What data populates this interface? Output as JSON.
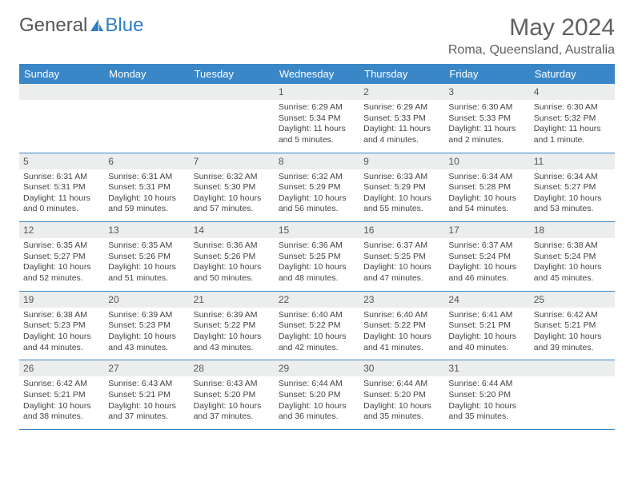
{
  "logo": {
    "text1": "General",
    "text2": "Blue"
  },
  "title": "May 2024",
  "location": "Roma, Queensland, Australia",
  "dayHeaders": [
    "Sunday",
    "Monday",
    "Tuesday",
    "Wednesday",
    "Thursday",
    "Friday",
    "Saturday"
  ],
  "colors": {
    "headerBg": "#3a87c8",
    "headerText": "#ffffff",
    "dayNumBg": "#eceded",
    "rule": "#3a87c8"
  },
  "weeks": [
    [
      {
        "n": "",
        "sr": "",
        "ss": "",
        "dl": ""
      },
      {
        "n": "",
        "sr": "",
        "ss": "",
        "dl": ""
      },
      {
        "n": "",
        "sr": "",
        "ss": "",
        "dl": ""
      },
      {
        "n": "1",
        "sr": "Sunrise: 6:29 AM",
        "ss": "Sunset: 5:34 PM",
        "dl": "Daylight: 11 hours and 5 minutes."
      },
      {
        "n": "2",
        "sr": "Sunrise: 6:29 AM",
        "ss": "Sunset: 5:33 PM",
        "dl": "Daylight: 11 hours and 4 minutes."
      },
      {
        "n": "3",
        "sr": "Sunrise: 6:30 AM",
        "ss": "Sunset: 5:33 PM",
        "dl": "Daylight: 11 hours and 2 minutes."
      },
      {
        "n": "4",
        "sr": "Sunrise: 6:30 AM",
        "ss": "Sunset: 5:32 PM",
        "dl": "Daylight: 11 hours and 1 minute."
      }
    ],
    [
      {
        "n": "5",
        "sr": "Sunrise: 6:31 AM",
        "ss": "Sunset: 5:31 PM",
        "dl": "Daylight: 11 hours and 0 minutes."
      },
      {
        "n": "6",
        "sr": "Sunrise: 6:31 AM",
        "ss": "Sunset: 5:31 PM",
        "dl": "Daylight: 10 hours and 59 minutes."
      },
      {
        "n": "7",
        "sr": "Sunrise: 6:32 AM",
        "ss": "Sunset: 5:30 PM",
        "dl": "Daylight: 10 hours and 57 minutes."
      },
      {
        "n": "8",
        "sr": "Sunrise: 6:32 AM",
        "ss": "Sunset: 5:29 PM",
        "dl": "Daylight: 10 hours and 56 minutes."
      },
      {
        "n": "9",
        "sr": "Sunrise: 6:33 AM",
        "ss": "Sunset: 5:29 PM",
        "dl": "Daylight: 10 hours and 55 minutes."
      },
      {
        "n": "10",
        "sr": "Sunrise: 6:34 AM",
        "ss": "Sunset: 5:28 PM",
        "dl": "Daylight: 10 hours and 54 minutes."
      },
      {
        "n": "11",
        "sr": "Sunrise: 6:34 AM",
        "ss": "Sunset: 5:27 PM",
        "dl": "Daylight: 10 hours and 53 minutes."
      }
    ],
    [
      {
        "n": "12",
        "sr": "Sunrise: 6:35 AM",
        "ss": "Sunset: 5:27 PM",
        "dl": "Daylight: 10 hours and 52 minutes."
      },
      {
        "n": "13",
        "sr": "Sunrise: 6:35 AM",
        "ss": "Sunset: 5:26 PM",
        "dl": "Daylight: 10 hours and 51 minutes."
      },
      {
        "n": "14",
        "sr": "Sunrise: 6:36 AM",
        "ss": "Sunset: 5:26 PM",
        "dl": "Daylight: 10 hours and 50 minutes."
      },
      {
        "n": "15",
        "sr": "Sunrise: 6:36 AM",
        "ss": "Sunset: 5:25 PM",
        "dl": "Daylight: 10 hours and 48 minutes."
      },
      {
        "n": "16",
        "sr": "Sunrise: 6:37 AM",
        "ss": "Sunset: 5:25 PM",
        "dl": "Daylight: 10 hours and 47 minutes."
      },
      {
        "n": "17",
        "sr": "Sunrise: 6:37 AM",
        "ss": "Sunset: 5:24 PM",
        "dl": "Daylight: 10 hours and 46 minutes."
      },
      {
        "n": "18",
        "sr": "Sunrise: 6:38 AM",
        "ss": "Sunset: 5:24 PM",
        "dl": "Daylight: 10 hours and 45 minutes."
      }
    ],
    [
      {
        "n": "19",
        "sr": "Sunrise: 6:38 AM",
        "ss": "Sunset: 5:23 PM",
        "dl": "Daylight: 10 hours and 44 minutes."
      },
      {
        "n": "20",
        "sr": "Sunrise: 6:39 AM",
        "ss": "Sunset: 5:23 PM",
        "dl": "Daylight: 10 hours and 43 minutes."
      },
      {
        "n": "21",
        "sr": "Sunrise: 6:39 AM",
        "ss": "Sunset: 5:22 PM",
        "dl": "Daylight: 10 hours and 43 minutes."
      },
      {
        "n": "22",
        "sr": "Sunrise: 6:40 AM",
        "ss": "Sunset: 5:22 PM",
        "dl": "Daylight: 10 hours and 42 minutes."
      },
      {
        "n": "23",
        "sr": "Sunrise: 6:40 AM",
        "ss": "Sunset: 5:22 PM",
        "dl": "Daylight: 10 hours and 41 minutes."
      },
      {
        "n": "24",
        "sr": "Sunrise: 6:41 AM",
        "ss": "Sunset: 5:21 PM",
        "dl": "Daylight: 10 hours and 40 minutes."
      },
      {
        "n": "25",
        "sr": "Sunrise: 6:42 AM",
        "ss": "Sunset: 5:21 PM",
        "dl": "Daylight: 10 hours and 39 minutes."
      }
    ],
    [
      {
        "n": "26",
        "sr": "Sunrise: 6:42 AM",
        "ss": "Sunset: 5:21 PM",
        "dl": "Daylight: 10 hours and 38 minutes."
      },
      {
        "n": "27",
        "sr": "Sunrise: 6:43 AM",
        "ss": "Sunset: 5:21 PM",
        "dl": "Daylight: 10 hours and 37 minutes."
      },
      {
        "n": "28",
        "sr": "Sunrise: 6:43 AM",
        "ss": "Sunset: 5:20 PM",
        "dl": "Daylight: 10 hours and 37 minutes."
      },
      {
        "n": "29",
        "sr": "Sunrise: 6:44 AM",
        "ss": "Sunset: 5:20 PM",
        "dl": "Daylight: 10 hours and 36 minutes."
      },
      {
        "n": "30",
        "sr": "Sunrise: 6:44 AM",
        "ss": "Sunset: 5:20 PM",
        "dl": "Daylight: 10 hours and 35 minutes."
      },
      {
        "n": "31",
        "sr": "Sunrise: 6:44 AM",
        "ss": "Sunset: 5:20 PM",
        "dl": "Daylight: 10 hours and 35 minutes."
      },
      {
        "n": "",
        "sr": "",
        "ss": "",
        "dl": ""
      }
    ]
  ]
}
